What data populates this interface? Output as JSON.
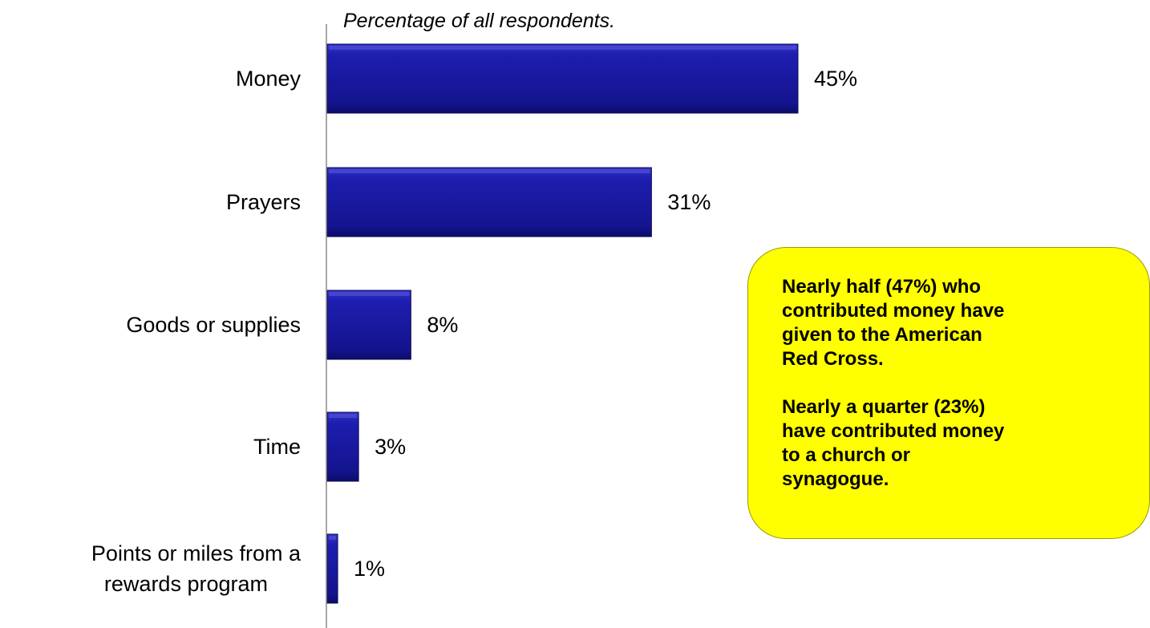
{
  "chart_data": {
    "type": "bar",
    "orientation": "horizontal",
    "subtitle": "Percentage of all respondents.",
    "categories": [
      "Money",
      "Prayers",
      "Goods or supplies",
      "Time",
      "Points or miles from a rewards program"
    ],
    "category_lines": [
      [
        "Money"
      ],
      [
        "Prayers"
      ],
      [
        "Goods or supplies"
      ],
      [
        "Time"
      ],
      [
        "Points or miles from a",
        "rewards program"
      ]
    ],
    "values": [
      45,
      31,
      8,
      3,
      1
    ],
    "data_labels": [
      "45%",
      "31%",
      "8%",
      "3%",
      "1%"
    ],
    "value_unit": "%",
    "bar_color": "#1a1aa8",
    "grid": false,
    "legend": "none"
  },
  "callout": {
    "paragraphs": [
      "Nearly half (47%) who contributed money have given to the American Red Cross.",
      "Nearly a quarter (23%) have contributed money to a church or synagogue."
    ],
    "background": "#ffff00"
  }
}
